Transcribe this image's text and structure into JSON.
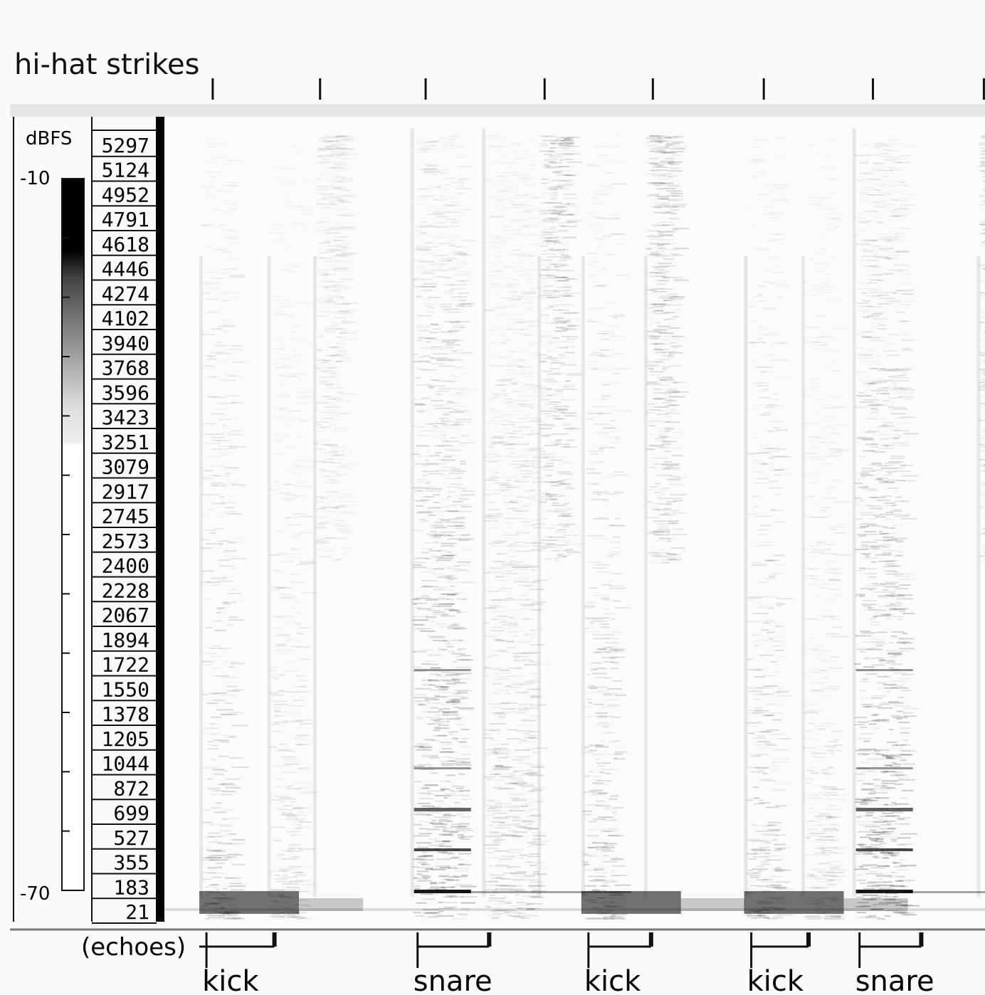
{
  "top_label": "hi-hat strikes",
  "colorbar": {
    "unit": "dBFS",
    "max_label": "-10",
    "min_label": "-70",
    "max": -10,
    "min": -70,
    "tick_count": 13
  },
  "chart_data": {
    "type": "heatmap",
    "title": "",
    "frequency_labels": [
      "5297",
      "5124",
      "4952",
      "4791",
      "4618",
      "4446",
      "4274",
      "4102",
      "3940",
      "3768",
      "3596",
      "3423",
      "3251",
      "3079",
      "2917",
      "2745",
      "2573",
      "2400",
      "2228",
      "2067",
      "1894",
      "1722",
      "1550",
      "1378",
      "1205",
      "1044",
      "872",
      "699",
      "527",
      "355",
      "183",
      "21"
    ],
    "hihat_strikes": [
      0.198,
      0.318,
      0.436,
      0.569,
      0.69,
      0.814,
      0.936,
      1.06
    ],
    "onsets": [
      {
        "label": "kick",
        "t": 0.191,
        "echo": 0.267
      },
      {
        "label": "snare",
        "t": 0.427,
        "echo": 0.507
      },
      {
        "label": "kick",
        "t": 0.618,
        "echo": 0.688
      },
      {
        "label": "kick",
        "t": 0.8,
        "echo": 0.864
      },
      {
        "label": "snare",
        "t": 0.921,
        "echo": 0.99
      }
    ],
    "echo_label": "(echoes)",
    "x_domain": [
      0,
      1.1
    ],
    "events": [
      {
        "t": 0.191,
        "type": "kick",
        "strength": 0.55
      },
      {
        "t": 0.267,
        "type": "kick-echo",
        "strength": 0.35
      },
      {
        "t": 0.318,
        "type": "hihat",
        "strength": 0.3
      },
      {
        "t": 0.427,
        "type": "snare",
        "strength": 0.8
      },
      {
        "t": 0.507,
        "type": "snare-echo",
        "strength": 0.45
      },
      {
        "t": 0.569,
        "type": "hihat",
        "strength": 0.55
      },
      {
        "t": 0.618,
        "type": "kick",
        "strength": 0.6
      },
      {
        "t": 0.688,
        "type": "hihat",
        "strength": 0.6
      },
      {
        "t": 0.8,
        "type": "kick",
        "strength": 0.55
      },
      {
        "t": 0.864,
        "type": "kick-echo",
        "strength": 0.35
      },
      {
        "t": 0.921,
        "type": "snare",
        "strength": 0.8
      },
      {
        "t": 1.06,
        "type": "hihat",
        "strength": 0.55
      }
    ]
  }
}
